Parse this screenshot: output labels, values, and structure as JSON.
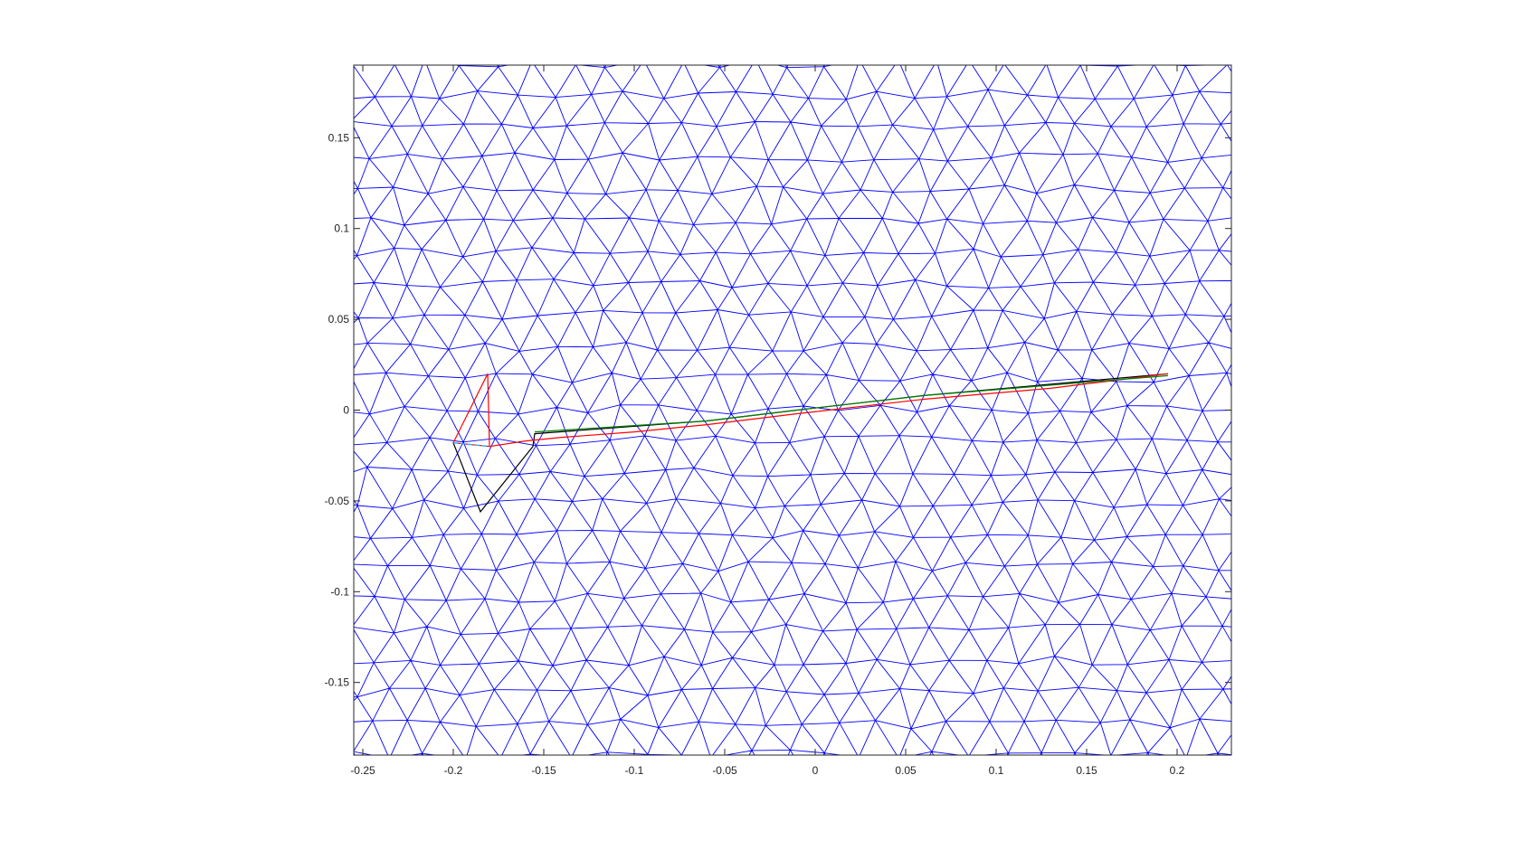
{
  "chart_data": {
    "type": "line",
    "title": "",
    "xlabel": "",
    "ylabel": "",
    "xlim": [
      -0.255,
      0.23
    ],
    "ylim": [
      -0.19,
      0.19
    ],
    "x_ticks": [
      -0.25,
      -0.2,
      -0.15,
      -0.1,
      -0.05,
      0,
      0.05,
      0.1,
      0.15,
      0.2
    ],
    "x_tick_labels": [
      "-0.25",
      "-0.2",
      "-0.15",
      "-0.1",
      "-0.05",
      "0",
      "0.05",
      "0.1",
      "0.15",
      "0.2"
    ],
    "y_ticks": [
      0.15,
      0.1,
      0.05,
      0,
      -0.05,
      -0.1,
      -0.15
    ],
    "y_tick_labels": [
      "0.15",
      "0.1",
      "0.05",
      "0",
      "-0.05",
      "-0.1",
      "-0.15"
    ],
    "grid": false,
    "box": true,
    "mesh": {
      "kind": "triangular",
      "color": "#0000ff",
      "nominal_spacing": 0.02
    },
    "series": [
      {
        "color": "#000000",
        "style": "solid",
        "x": [
          0.195,
          0.06,
          -0.01,
          -0.06,
          -0.155,
          -0.156,
          -0.185,
          -0.2
        ],
        "y": [
          0.02,
          0.008,
          0.0,
          -0.006,
          -0.013,
          -0.02,
          -0.056,
          -0.018
        ]
      },
      {
        "color": "#ff0000",
        "style": "solid",
        "x": [
          0.195,
          0.13,
          0.06,
          -0.01,
          -0.06,
          -0.1,
          -0.14,
          -0.16,
          -0.18,
          -0.181,
          -0.2,
          -0.18
        ],
        "y": [
          0.02,
          0.012,
          0.006,
          -0.002,
          -0.008,
          -0.012,
          -0.015,
          -0.017,
          -0.02,
          0.02,
          -0.018,
          -0.02
        ]
      },
      {
        "color": "#008000",
        "style": "solid",
        "x": [
          0.195,
          0.06,
          -0.01,
          -0.06,
          -0.155
        ],
        "y": [
          0.019,
          0.008,
          0.0,
          -0.006,
          -0.012
        ]
      },
      {
        "color": "#00bfff",
        "style": "dashed",
        "x": [
          -0.2,
          -0.18
        ],
        "y": [
          -0.018,
          -0.02
        ]
      }
    ]
  }
}
